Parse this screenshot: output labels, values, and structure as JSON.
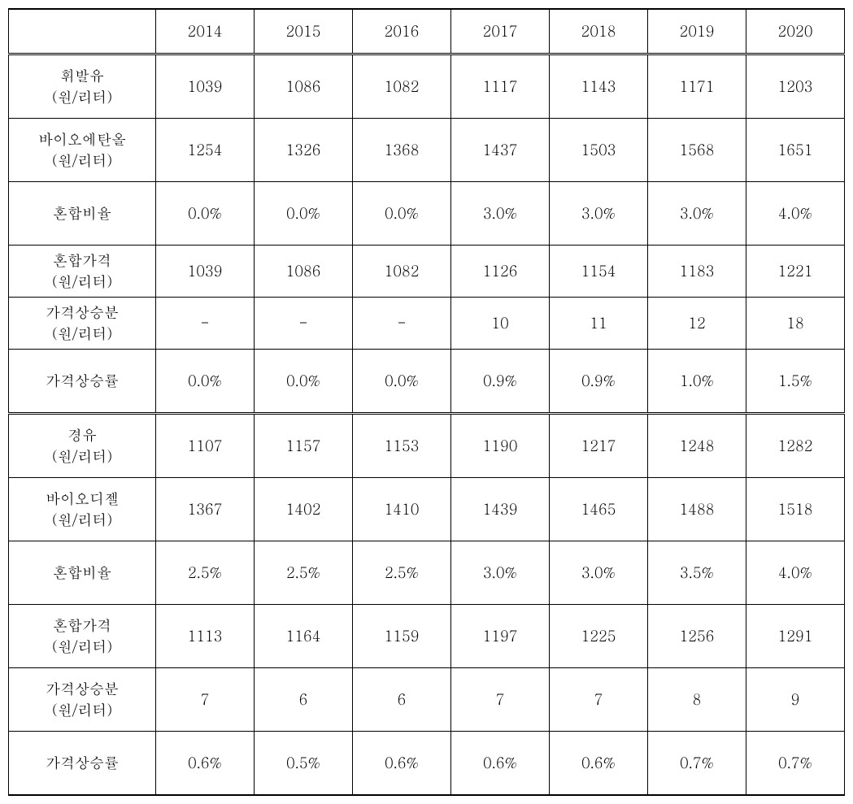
{
  "table": {
    "years": [
      "2014",
      "2015",
      "2016",
      "2017",
      "2018",
      "2019",
      "2020"
    ],
    "sections": [
      {
        "rows": [
          {
            "label": "휘발유\n(원/리터)",
            "height": "tall",
            "values": [
              "1039",
              "1086",
              "1082",
              "1117",
              "1143",
              "1171",
              "1203"
            ]
          },
          {
            "label": "바이오에탄올\n(원/리터)",
            "height": "tall",
            "values": [
              "1254",
              "1326",
              "1368",
              "1437",
              "1503",
              "1568",
              "1651"
            ]
          },
          {
            "label": "혼합비율",
            "height": "tall",
            "values": [
              "0.0%",
              "0.0%",
              "0.0%",
              "3.0%",
              "3.0%",
              "3.0%",
              "4.0%"
            ]
          },
          {
            "label": "혼합가격\n(원/리터)",
            "height": "short",
            "values": [
              "1039",
              "1086",
              "1082",
              "1126",
              "1154",
              "1183",
              "1221"
            ]
          },
          {
            "label": "가격상승분\n(원/리터)",
            "height": "short",
            "values": [
              "-",
              "-",
              "-",
              "10",
              "11",
              "12",
              "18"
            ]
          },
          {
            "label": "가격상승률",
            "height": "tall",
            "values": [
              "0.0%",
              "0.0%",
              "0.0%",
              "0.9%",
              "0.9%",
              "1.0%",
              "1.5%"
            ]
          }
        ]
      },
      {
        "rows": [
          {
            "label": "경유\n(원/리터)",
            "height": "tall",
            "values": [
              "1107",
              "1157",
              "1153",
              "1190",
              "1217",
              "1248",
              "1282"
            ]
          },
          {
            "label": "바이오디젤\n(원/리터)",
            "height": "tall",
            "values": [
              "1367",
              "1402",
              "1410",
              "1439",
              "1465",
              "1488",
              "1518"
            ]
          },
          {
            "label": "혼합비율",
            "height": "tall",
            "values": [
              "2.5%",
              "2.5%",
              "2.5%",
              "3.0%",
              "3.0%",
              "3.5%",
              "4.0%"
            ]
          },
          {
            "label": "혼합가격\n(원/리터)",
            "height": "tall",
            "values": [
              "1113",
              "1164",
              "1159",
              "1197",
              "1225",
              "1256",
              "1291"
            ]
          },
          {
            "label": "가격상승분\n(원/리터)",
            "height": "tall",
            "values": [
              "7",
              "6",
              "6",
              "7",
              "7",
              "8",
              "9"
            ]
          },
          {
            "label": "가격상승률",
            "height": "tall",
            "values": [
              "0.6%",
              "0.5%",
              "0.6%",
              "0.6%",
              "0.6%",
              "0.7%",
              "0.7%"
            ]
          }
        ]
      }
    ],
    "style": {
      "font_size": 18,
      "border_color": "#000000",
      "background": "#ffffff",
      "text_color": "#000000"
    }
  }
}
